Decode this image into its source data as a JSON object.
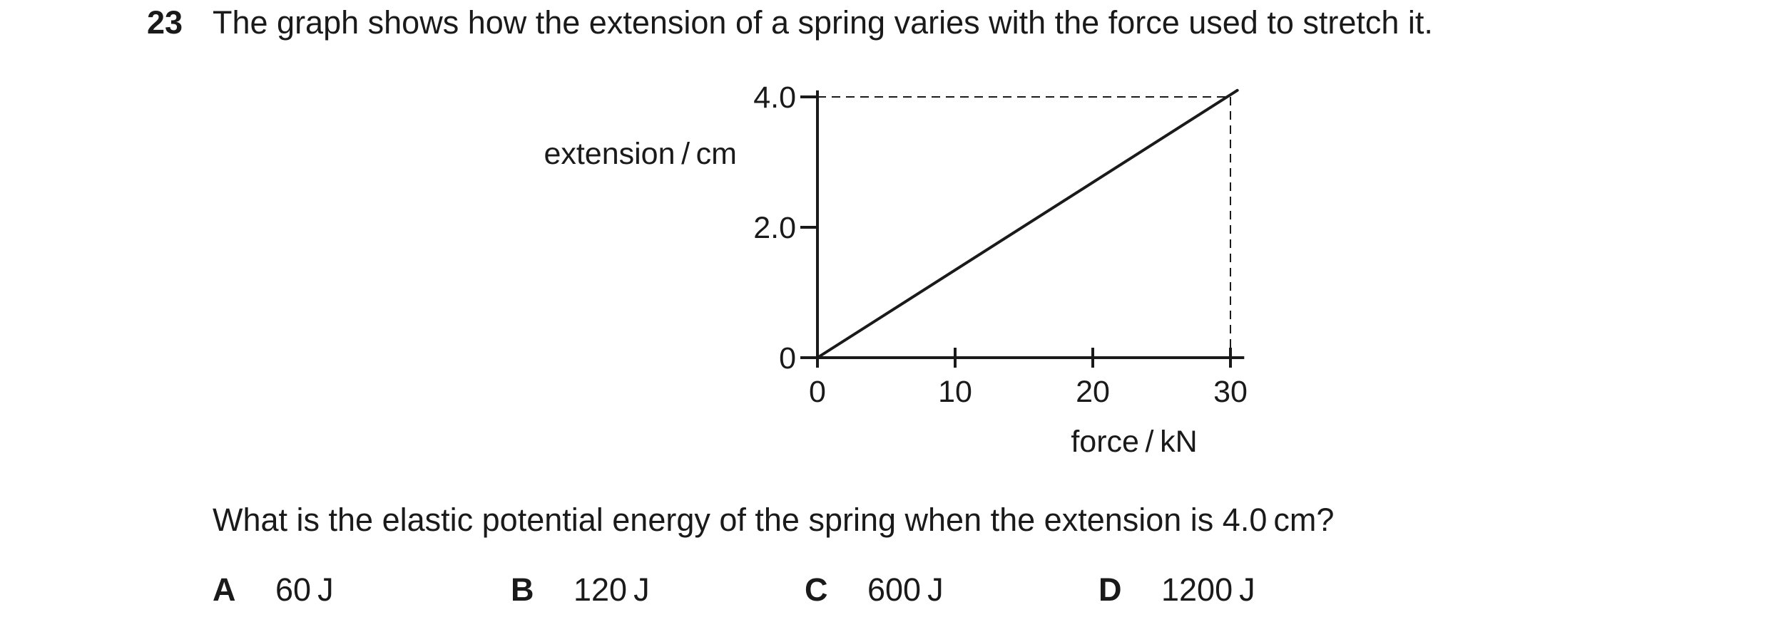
{
  "question": {
    "number": "23",
    "stem": "The graph shows how the extension of a spring varies with the force used to stretch it.",
    "prompt": "What is the elastic potential energy of the spring when the extension is 4.0 cm?",
    "options": [
      {
        "letter": "A",
        "text": "60 J"
      },
      {
        "letter": "B",
        "text": "120 J"
      },
      {
        "letter": "C",
        "text": "600 J"
      },
      {
        "letter": "D",
        "text": "1200 J"
      }
    ]
  },
  "chart_data": {
    "type": "line",
    "xlabel": "force / kN",
    "ylabel": "extension / cm",
    "x_ticks": [
      0,
      10,
      20,
      30
    ],
    "x_tick_labels": [
      "0",
      "10",
      "20",
      "30"
    ],
    "y_ticks": [
      0,
      2.0,
      4.0
    ],
    "y_tick_labels": [
      "0",
      "2.0",
      "4.0"
    ],
    "xlim": [
      0,
      31
    ],
    "ylim": [
      0,
      4.1
    ],
    "grid": false,
    "series": [
      {
        "x": [
          0,
          30.5
        ],
        "y": [
          0,
          4.1
        ]
      }
    ],
    "guides": [
      {
        "x": 30,
        "y": 4.0,
        "style": "dashed"
      }
    ]
  }
}
